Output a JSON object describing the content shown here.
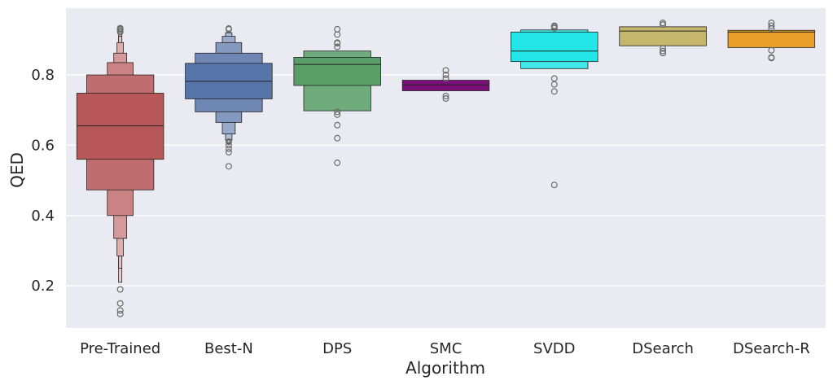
{
  "chart_data": {
    "type": "boxen",
    "title": "",
    "xlabel": "Algorithm",
    "ylabel": "QED",
    "ylim": [
      0.08,
      0.99
    ],
    "yticks": [
      0.2,
      0.4,
      0.6,
      0.8
    ],
    "ytick_labels": [
      "0.2",
      "0.4",
      "0.6",
      "0.8"
    ],
    "grid": true,
    "background": "#eaeaf2",
    "categories": [
      "Pre-Trained",
      "Best-N",
      "DPS",
      "SMC",
      "SVDD",
      "DSearch",
      "DSearch-R"
    ],
    "series": [
      {
        "color": "#b85759",
        "median": 0.655,
        "levels": [
          [
            0.56,
            0.748
          ],
          [
            0.473,
            0.8
          ],
          [
            0.4,
            0.835
          ],
          [
            0.335,
            0.862
          ],
          [
            0.285,
            0.892
          ],
          [
            0.25,
            0.91
          ],
          [
            0.21,
            0.918
          ]
        ],
        "outliers": [
          0.19,
          0.15,
          0.13,
          0.12,
          0.922,
          0.926,
          0.93,
          0.933
        ]
      },
      {
        "color": "#5875aa",
        "median": 0.782,
        "levels": [
          [
            0.732,
            0.833
          ],
          [
            0.695,
            0.862
          ],
          [
            0.665,
            0.892
          ],
          [
            0.632,
            0.91
          ],
          [
            0.615,
            0.92
          ],
          [
            0.605,
            0.925
          ]
        ],
        "outliers": [
          0.61,
          0.6,
          0.59,
          0.58,
          0.54,
          0.93,
          0.932
        ]
      },
      {
        "color": "#5a9f68",
        "median": 0.83,
        "levels": [
          [
            0.77,
            0.85
          ],
          [
            0.698,
            0.868
          ]
        ],
        "outliers": [
          0.695,
          0.687,
          0.657,
          0.62,
          0.55,
          0.88,
          0.89,
          0.892,
          0.915,
          0.93
        ]
      },
      {
        "color": "#7b0f79",
        "median": 0.772,
        "levels": [
          [
            0.755,
            0.785
          ]
        ],
        "outliers": [
          0.74,
          0.733,
          0.79,
          0.8,
          0.813
        ]
      },
      {
        "color": "#22e6e6",
        "median": 0.868,
        "levels": [
          [
            0.838,
            0.922
          ],
          [
            0.818,
            0.928
          ]
        ],
        "outliers": [
          0.79,
          0.773,
          0.753,
          0.487,
          0.933,
          0.937,
          0.94
        ]
      },
      {
        "color": "#c6b66c",
        "median": 0.925,
        "levels": [
          [
            0.883,
            0.937
          ]
        ],
        "outliers": [
          0.875,
          0.868,
          0.862,
          0.943,
          0.948
        ]
      },
      {
        "color": "#eaa02b",
        "median": 0.922,
        "levels": [
          [
            0.878,
            0.927
          ]
        ],
        "outliers": [
          0.87,
          0.85,
          0.848,
          0.932,
          0.94,
          0.948
        ]
      }
    ]
  }
}
